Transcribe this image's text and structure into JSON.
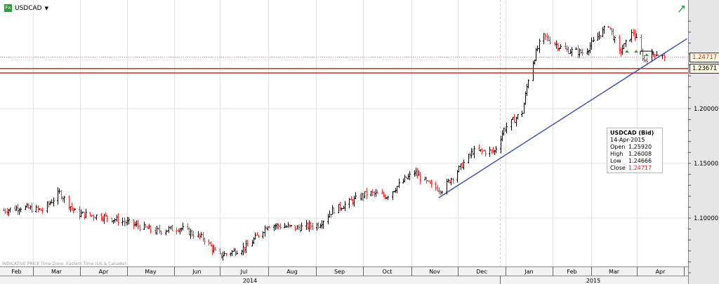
{
  "header": {
    "symbol": "USDCAD",
    "fx_badge": "Fx",
    "dropdown_icon": "caret-down-icon"
  },
  "footer": {
    "note": "INDICATIVE PRICE   Time Zone: Eastern Time (US & Canada)"
  },
  "tooltip": {
    "title": "USDCAD (Bid)",
    "date": "14-Apr-2015",
    "open_label": "Open",
    "open": "1.25920",
    "high_label": "High",
    "high": "1.26008",
    "low_label": "Low",
    "low": "1.24666",
    "close_label": "Close",
    "close": "1.24717"
  },
  "price_labels": {
    "last": "1.24717",
    "level": "1.23671"
  },
  "colors": {
    "up": "#000000",
    "down": "#ff3030",
    "trendline": "#4455aa",
    "level": "#e82020",
    "axis_bg": "#e6e6e6"
  },
  "chart_data": {
    "type": "ohlc",
    "title": "USDCAD",
    "y_ticks": [
      "1.10000",
      "1.15000",
      "1.20000"
    ],
    "ylim": [
      1.0487,
      1.2923
    ],
    "x_months": [
      "Feb",
      "Mar",
      "Apr",
      "May",
      "Jun",
      "Jul",
      "Aug",
      "Sep",
      "Oct",
      "Nov",
      "Dec",
      "Jan",
      "Feb",
      "Mar",
      "Apr"
    ],
    "x_years": [
      "2014",
      "2015"
    ],
    "grid": true,
    "close_path": [
      [
        "2014-02-10",
        1.107
      ],
      [
        "2014-02-21",
        1.11
      ],
      [
        "2014-03-07",
        1.107
      ],
      [
        "2014-03-18",
        1.123
      ],
      [
        "2014-03-29",
        1.104
      ],
      [
        "2014-04-17",
        1.101
      ],
      [
        "2014-05-03",
        1.095
      ],
      [
        "2014-05-19",
        1.088
      ],
      [
        "2014-06-04",
        1.091
      ],
      [
        "2014-06-20",
        1.081
      ],
      [
        "2014-06-29",
        1.065
      ],
      [
        "2014-07-18",
        1.074
      ],
      [
        "2014-07-31",
        1.094
      ],
      [
        "2014-08-19",
        1.091
      ],
      [
        "2014-09-02",
        1.094
      ],
      [
        "2014-09-11",
        1.107
      ],
      [
        "2014-09-20",
        1.113
      ],
      [
        "2014-10-04",
        1.123
      ],
      [
        "2014-10-16",
        1.12
      ],
      [
        "2014-10-23",
        1.129
      ],
      [
        "2014-11-03",
        1.142
      ],
      [
        "2014-11-14",
        1.129
      ],
      [
        "2014-11-21",
        1.126
      ],
      [
        "2014-12-02",
        1.145
      ],
      [
        "2014-12-11",
        1.161
      ],
      [
        "2014-12-25",
        1.161
      ],
      [
        "2014-12-31",
        1.181
      ],
      [
        "2015-01-12",
        1.197
      ],
      [
        "2015-01-17",
        1.235
      ],
      [
        "2015-01-25",
        1.267
      ],
      [
        "2015-02-08",
        1.254
      ],
      [
        "2015-02-21",
        1.251
      ],
      [
        "2015-03-09",
        1.277
      ],
      [
        "2015-03-16",
        1.251
      ],
      [
        "2015-03-25",
        1.27
      ],
      [
        "2015-04-01",
        1.244
      ],
      [
        "2015-04-08",
        1.251
      ],
      [
        "2015-04-14",
        1.24717
      ]
    ],
    "trendline": [
      [
        "2014-11-19",
        1.1186
      ],
      [
        "2015-04-29",
        1.264
      ]
    ],
    "horizontal_levels": [
      1.23671,
      1.2327
    ],
    "last_price": 1.24717
  }
}
